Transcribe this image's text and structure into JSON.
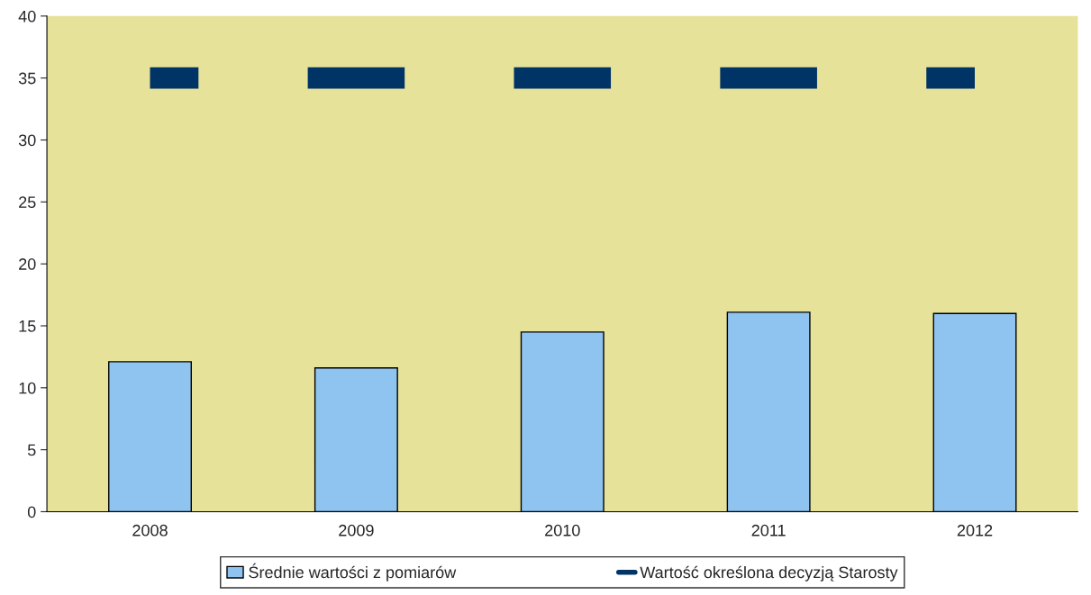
{
  "chart_data": {
    "type": "bar",
    "categories": [
      "2008",
      "2009",
      "2010",
      "2011",
      "2012"
    ],
    "series": [
      {
        "name": "Średnie wartości z pomiarów",
        "color": "#8fc3f0",
        "values": [
          12.1,
          11.6,
          14.5,
          16.1,
          16.0
        ]
      },
      {
        "name": "Wartość określona decyzją Starosty",
        "type": "line",
        "line_style": "dashed",
        "color": "#003366",
        "values": [
          35,
          35,
          35,
          35,
          35
        ]
      }
    ],
    "ylim": [
      0,
      40
    ],
    "yticks": [
      0,
      5,
      10,
      15,
      20,
      25,
      30,
      35,
      40
    ],
    "grid": false,
    "legend": "bottom"
  }
}
